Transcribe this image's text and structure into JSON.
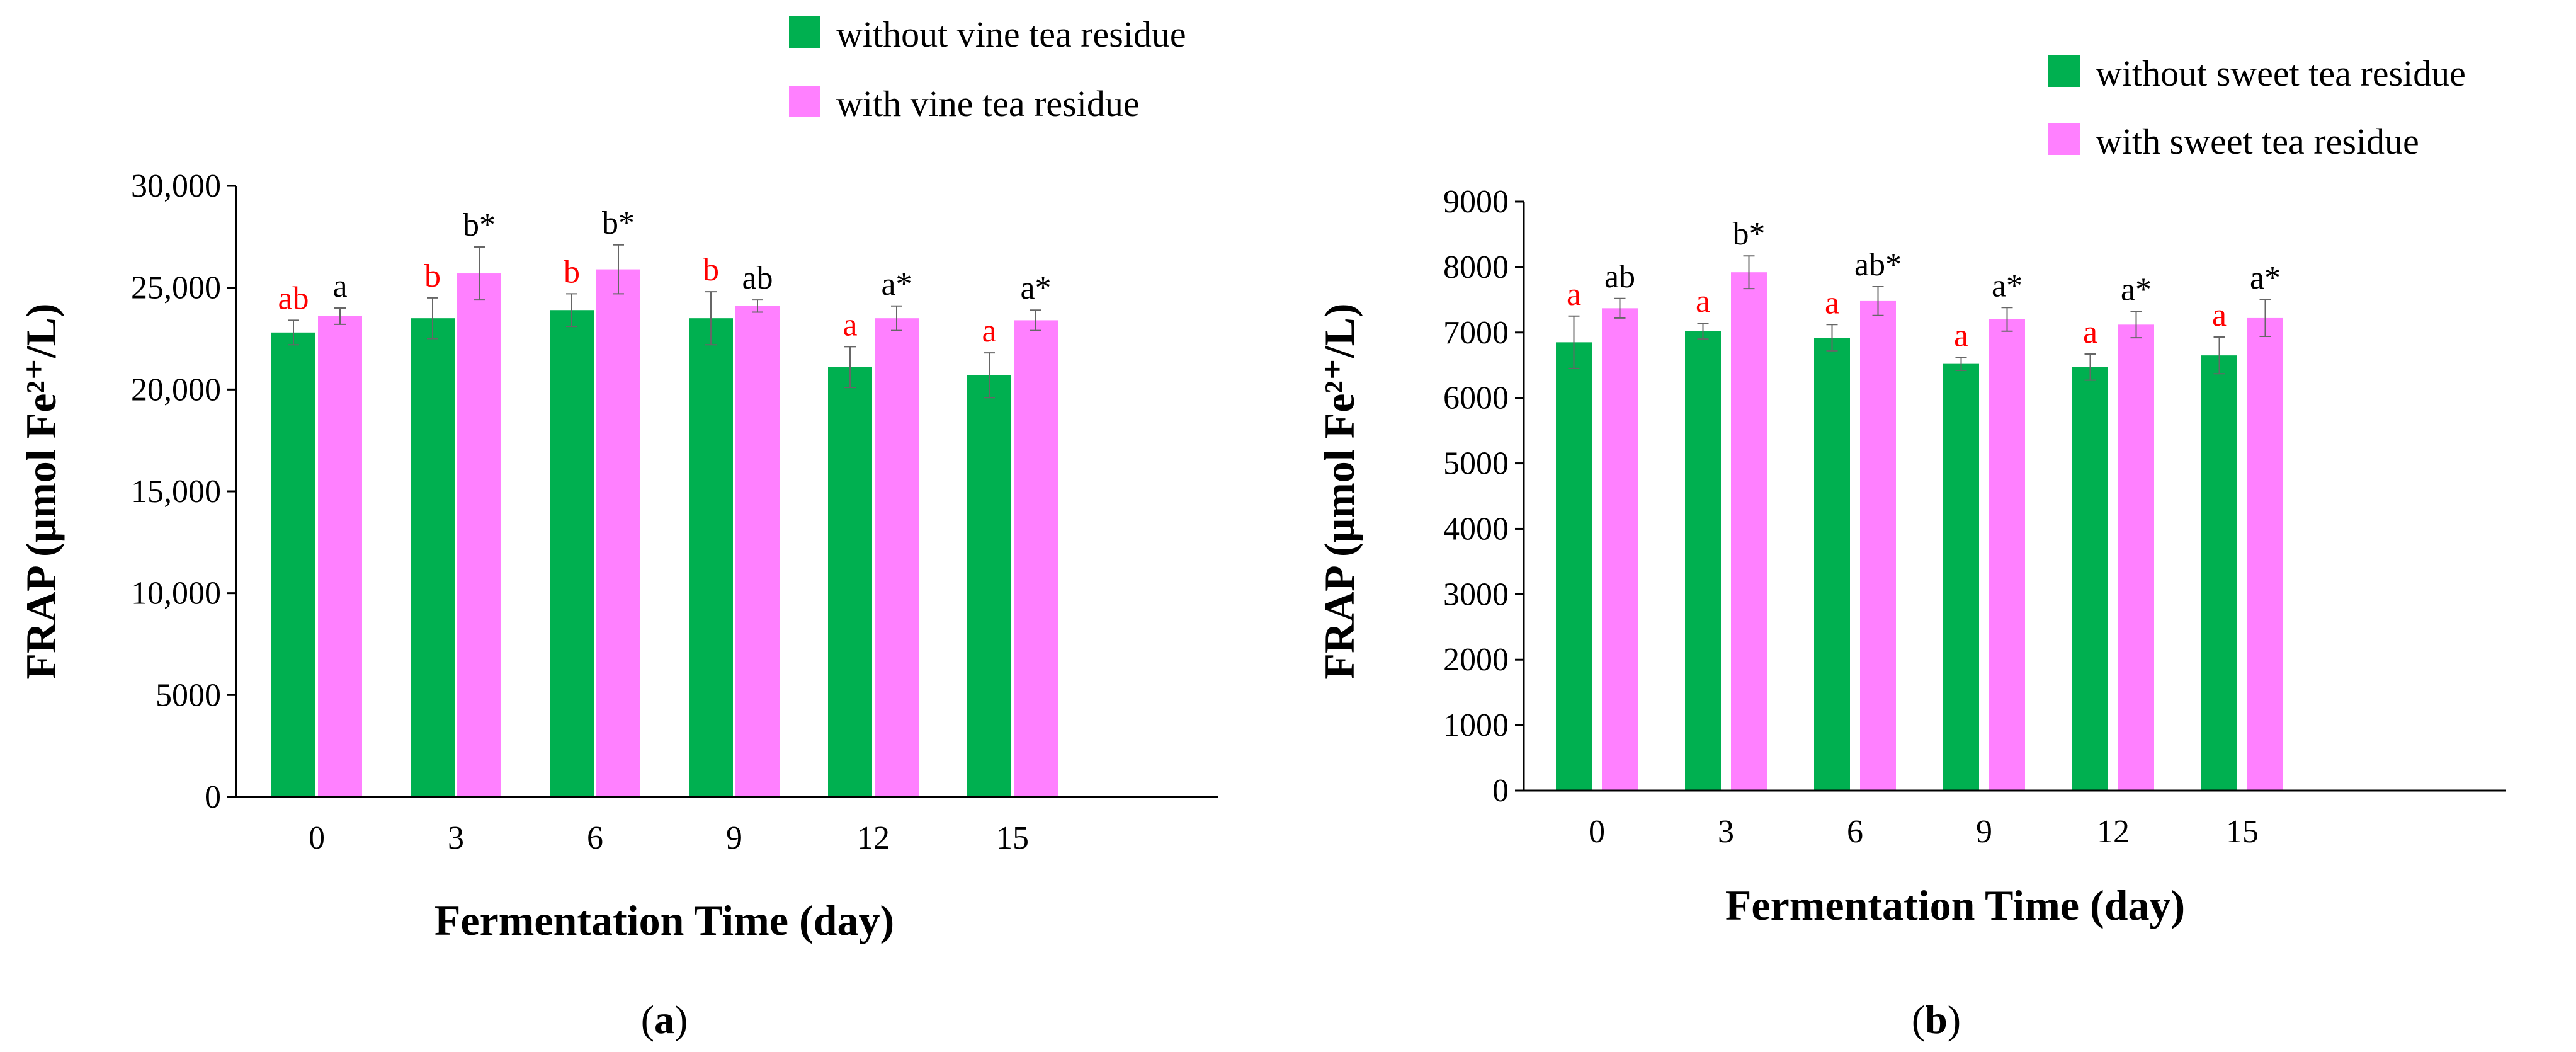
{
  "chart_data": [
    {
      "type": "bar",
      "panel_label": "(a)",
      "panel_letter": "a",
      "xlabel": "Fermentation Time (day)",
      "ylabel": "FRAP (μmol Fe²⁺/L)",
      "ylim": [
        0,
        30000
      ],
      "yticks": [
        0,
        5000,
        10000,
        15000,
        20000,
        25000,
        30000
      ],
      "ytick_labels": [
        "0",
        "5000",
        "10,000",
        "15,000",
        "20,000",
        "25,000",
        "30,000"
      ],
      "categories": [
        "0",
        "3",
        "6",
        "9",
        "12",
        "15"
      ],
      "legend_position": "top-center",
      "series": [
        {
          "name": "without vine tea residue",
          "color": "#00b050",
          "values": [
            22800,
            23500,
            23900,
            23500,
            21100,
            20700
          ],
          "errors": [
            600,
            1000,
            800,
            1300,
            1000,
            1100
          ],
          "labels": [
            "ab",
            "b",
            "b",
            "b",
            "a",
            "a"
          ],
          "label_color": "#ff0000"
        },
        {
          "name": "with vine tea residue",
          "color": "#ff80ff",
          "values": [
            23600,
            25700,
            25900,
            24100,
            23500,
            23400
          ],
          "errors": [
            400,
            1300,
            1200,
            300,
            600,
            500
          ],
          "labels": [
            "a",
            "b*",
            "b*",
            "ab",
            "a*",
            "a*"
          ],
          "label_color": "#000000"
        }
      ]
    },
    {
      "type": "bar",
      "panel_label": "(b)",
      "panel_letter": "b",
      "xlabel": "Fermentation Time (day)",
      "ylabel": "FRAP (μmol Fe²⁺/L)",
      "ylim": [
        0,
        9000
      ],
      "yticks": [
        0,
        1000,
        2000,
        3000,
        4000,
        5000,
        6000,
        7000,
        8000,
        9000
      ],
      "ytick_labels": [
        "0",
        "1000",
        "2000",
        "3000",
        "4000",
        "5000",
        "6000",
        "7000",
        "8000",
        "9000"
      ],
      "categories": [
        "0",
        "3",
        "6",
        "9",
        "12",
        "15"
      ],
      "legend_position": "top-right",
      "series": [
        {
          "name": "without sweet tea residue",
          "color": "#00b050",
          "values": [
            6850,
            7020,
            6920,
            6520,
            6470,
            6650
          ],
          "errors": [
            400,
            120,
            200,
            100,
            200,
            280
          ],
          "labels": [
            "a",
            "a",
            "a",
            "a",
            "a",
            "a"
          ],
          "label_color": "#ff0000"
        },
        {
          "name": "with sweet tea residue",
          "color": "#ff80ff",
          "values": [
            7370,
            7920,
            7480,
            7200,
            7120,
            7220
          ],
          "errors": [
            150,
            250,
            220,
            180,
            200,
            280
          ],
          "labels": [
            "ab",
            "b*",
            "ab*",
            "a*",
            "a*",
            "a*"
          ],
          "label_color": "#000000"
        }
      ]
    }
  ]
}
